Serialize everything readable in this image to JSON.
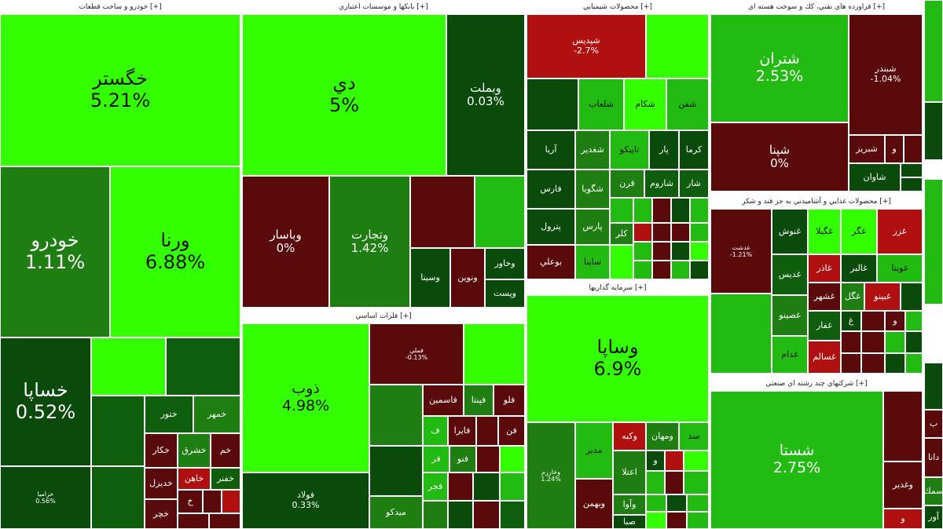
{
  "colors": {
    "bright_green": "#33ff00",
    "green": "#22aa11",
    "dark_green": "#0e5e0e",
    "deep_green": "#0a4a0a",
    "dark_red": "#5a0a0a",
    "red": "#b01010",
    "text_light": "#ffffff",
    "text_dark": "#111111"
  },
  "sectors": [
    {
      "id": "auto",
      "title": "خودرو و ساخت قطعات [+]",
      "tiles": [
        {
          "symbol": "خگستر",
          "percent": "5.21%"
        },
        {
          "symbol": "خودرو",
          "percent": "1.11%"
        },
        {
          "symbol": "ورنا",
          "percent": "6.88%"
        },
        {
          "symbol": "خساپا",
          "percent": "0.52%"
        },
        {
          "symbol": "خزامیا",
          "percent": "0.56%"
        },
        {
          "symbol": "ختور",
          "percent": ""
        },
        {
          "symbol": "خمهر",
          "percent": ""
        },
        {
          "symbol": "خکار",
          "percent": ""
        },
        {
          "symbol": "خشرق",
          "percent": ""
        },
        {
          "symbol": "خفنر",
          "percent": ""
        },
        {
          "symbol": "خاهن",
          "percent": ""
        },
        {
          "symbol": "خدیزل",
          "percent": ""
        },
        {
          "symbol": "خم",
          "percent": ""
        },
        {
          "symbol": "خ",
          "percent": ""
        },
        {
          "symbol": "خچر",
          "percent": ""
        }
      ]
    },
    {
      "id": "banks",
      "title": "بانکها و موسسات اعتباري [+]",
      "tiles": [
        {
          "symbol": "دي",
          "percent": "5%"
        },
        {
          "symbol": "وبملت",
          "percent": "0.03%"
        },
        {
          "symbol": "وباسار",
          "percent": "0%"
        },
        {
          "symbol": "وتجارت",
          "percent": "1.42%"
        },
        {
          "symbol": "وسینا",
          "percent": ""
        },
        {
          "symbol": "ونوین",
          "percent": ""
        },
        {
          "symbol": "وخاور",
          "percent": ""
        },
        {
          "symbol": "وپست",
          "percent": ""
        }
      ]
    },
    {
      "id": "metals",
      "title": "فلزات اساسي [+]",
      "tiles": [
        {
          "symbol": "ذوب",
          "percent": "4.98%"
        },
        {
          "symbol": "فولاد",
          "percent": "0.33%"
        },
        {
          "symbol": "فملي",
          "percent": "-0.13%"
        },
        {
          "symbol": "فاسمین",
          "percent": ""
        },
        {
          "symbol": "فپنتا",
          "percent": ""
        },
        {
          "symbol": "فلو",
          "percent": ""
        },
        {
          "symbol": "فایرا",
          "percent": ""
        },
        {
          "symbol": "فن",
          "percent": ""
        },
        {
          "symbol": "میدکو",
          "percent": ""
        },
        {
          "symbol": "فجر",
          "percent": ""
        },
        {
          "symbol": "فنو",
          "percent": ""
        },
        {
          "symbol": "فر",
          "percent": ""
        },
        {
          "symbol": "ف",
          "percent": ""
        }
      ]
    },
    {
      "id": "chem",
      "title": "محصولات شیمیایي [+]",
      "tiles": [
        {
          "symbol": "شپدیس",
          "percent": "-2.7%"
        },
        {
          "symbol": "شلعاب",
          "percent": ""
        },
        {
          "symbol": "شکام",
          "percent": ""
        },
        {
          "symbol": "شفن",
          "percent": ""
        },
        {
          "symbol": "آریا",
          "percent": ""
        },
        {
          "symbol": "شغدیر",
          "percent": ""
        },
        {
          "symbol": "تاپیکو",
          "percent": ""
        },
        {
          "symbol": "پار",
          "percent": ""
        },
        {
          "symbol": "کرما",
          "percent": ""
        },
        {
          "symbol": "فارس",
          "percent": ""
        },
        {
          "symbol": "شگویا",
          "percent": ""
        },
        {
          "symbol": "قرن",
          "percent": ""
        },
        {
          "symbol": "شاروم",
          "percent": ""
        },
        {
          "symbol": "شار",
          "percent": ""
        },
        {
          "symbol": "پترول",
          "percent": ""
        },
        {
          "symbol": "پارس",
          "percent": ""
        },
        {
          "symbol": "کلر",
          "percent": ""
        },
        {
          "symbol": "بوعلي",
          "percent": ""
        },
        {
          "symbol": "ساینا",
          "percent": ""
        }
      ]
    },
    {
      "id": "invest",
      "title": "سرمایه گذاریها [+]",
      "tiles": [
        {
          "symbol": "وساپا",
          "percent": "6.9%"
        },
        {
          "symbol": "وخارزم",
          "percent": "1.24%"
        },
        {
          "symbol": "مدیر",
          "percent": ""
        },
        {
          "symbol": "وکبه",
          "percent": ""
        },
        {
          "symbol": "ومهان",
          "percent": ""
        },
        {
          "symbol": "سد",
          "percent": ""
        },
        {
          "symbol": "اعتلا",
          "percent": ""
        },
        {
          "symbol": "و",
          "percent": ""
        },
        {
          "symbol": "وبهمن",
          "percent": ""
        },
        {
          "symbol": "وآوا",
          "percent": ""
        },
        {
          "symbol": "صبا",
          "percent": ""
        }
      ]
    },
    {
      "id": "oil",
      "title": "فراورده هاي نفتي، کك و سوخت هسته اي [+]",
      "tiles": [
        {
          "symbol": "شتران",
          "percent": "2.53%"
        },
        {
          "symbol": "شبندر",
          "percent": "-1.04%"
        },
        {
          "symbol": "شپنا",
          "percent": "0%"
        },
        {
          "symbol": "شبریز",
          "percent": ""
        },
        {
          "symbol": "شاوان",
          "percent": ""
        },
        {
          "symbol": "و",
          "percent": ""
        }
      ]
    },
    {
      "id": "food",
      "title": "محصولات غذايي و آشاميدني به جز قند و شکر [+]",
      "tiles": [
        {
          "symbol": "غدشت",
          "percent": "-1.21%"
        },
        {
          "symbol": "غنوش",
          "percent": ""
        },
        {
          "symbol": "غگیلا",
          "percent": ""
        },
        {
          "symbol": "غگر",
          "percent": ""
        },
        {
          "symbol": "غزر",
          "percent": ""
        },
        {
          "symbol": "غدیس",
          "percent": ""
        },
        {
          "symbol": "غاذر",
          "percent": ""
        },
        {
          "symbol": "غالبر",
          "percent": ""
        },
        {
          "symbol": "غویتا",
          "percent": ""
        },
        {
          "symbol": "غشهر",
          "percent": ""
        },
        {
          "symbol": "غگل",
          "percent": ""
        },
        {
          "symbol": "غبینو",
          "percent": ""
        },
        {
          "symbol": "غصینو",
          "percent": ""
        },
        {
          "symbol": "غفار",
          "percent": ""
        },
        {
          "symbol": "غدام",
          "percent": ""
        },
        {
          "symbol": "غسالم",
          "percent": ""
        },
        {
          "symbol": "غ",
          "percent": ""
        },
        {
          "symbol": "و",
          "percent": ""
        }
      ]
    },
    {
      "id": "multi",
      "title": "شرکتهاي چند رشته اي صنعتي [+]",
      "tiles": [
        {
          "symbol": "شستا",
          "percent": "2.75%"
        },
        {
          "symbol": "وغدیر",
          "percent": ""
        },
        {
          "symbol": "و",
          "percent": ""
        },
        {
          "symbol": "ب",
          "percent": ""
        },
        {
          "symbol": "دانا",
          "percent": ""
        },
        {
          "symbol": "سمك",
          "percent": ""
        },
        {
          "symbol": "آور",
          "percent": ""
        }
      ]
    }
  ]
}
